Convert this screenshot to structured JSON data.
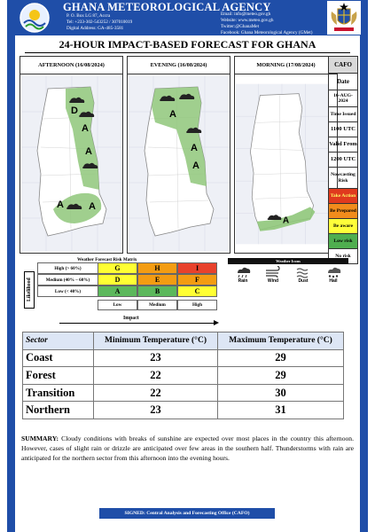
{
  "header": {
    "agency": "GHANA METEOROLOGICAL AGENCY",
    "address_lines": [
      "P. O. Box LG 87, Accra",
      "Tel: +233-302-543252 / 307010019",
      "Digital Address: GA-485-3581"
    ],
    "contact_lines": [
      "Email: info@meteo.gov.gh",
      "Website: www.meteo.gov.gh",
      "Twitter:@GhanaMet",
      "Facebook: Ghana Meteorological Agency (GMet)"
    ]
  },
  "headline": "24-HOUR IMPACT-BASED FORECAST FOR GHANA",
  "panels": [
    {
      "title": "AFTERNOON (16/08/2024)"
    },
    {
      "title": "EVENING (16/08/2024)"
    },
    {
      "title": "MORNING (17/08/2024)"
    }
  ],
  "map_labels": {
    "letter_a": "A",
    "letter_d": "D"
  },
  "cafo": {
    "title": "CAFO",
    "date_label": "Date",
    "date_value": "16-AUG-2024",
    "time_issued_label": "Time Issued",
    "time_issued_value": "1100 UTC",
    "valid_from_label": "Valid From",
    "valid_from_value": "1200 UTC",
    "nowcasting_label": "Nowcasting Risk",
    "risk_levels": [
      {
        "label": "Take Action",
        "color": "#e03a1e",
        "text_color": "#ffff66"
      },
      {
        "label": "Be Prepared",
        "color": "#f28c1c",
        "text_color": "#000000"
      },
      {
        "label": "Be aware",
        "color": "#ffff3a",
        "text_color": "#000000"
      },
      {
        "label": "Low risk",
        "color": "#4fae4f",
        "text_color": "#000000"
      },
      {
        "label": "No risk",
        "color": "#ffffff",
        "text_color": "#000000"
      }
    ]
  },
  "matrix": {
    "title": "Weather Forecast Risk Matrix",
    "likelihood_label": "Likelihood",
    "impact_label": "Impact",
    "rows": [
      {
        "label": "High (> 60%)",
        "cells": [
          "G",
          "H",
          "I"
        ]
      },
      {
        "label": "Medium (40% – 60%)",
        "cells": [
          "D",
          "E",
          "F"
        ]
      },
      {
        "label": "Low (< 40%)",
        "cells": [
          "A",
          "B",
          "C"
        ]
      }
    ],
    "columns": [
      "Low",
      "Medium",
      "High"
    ],
    "colors": {
      "green": "#5cb85c",
      "yellow": "#ffff33",
      "orange": "#f39c12",
      "red": "#e8412c"
    }
  },
  "weather_icons": {
    "title": "Weather Icons",
    "items": [
      {
        "label": "Rain",
        "icon": "rain-cloud-icon"
      },
      {
        "label": "Wind",
        "icon": "wind-icon"
      },
      {
        "label": "Dust",
        "icon": "dust-icon"
      },
      {
        "label": "Hail",
        "icon": "hail-icon"
      }
    ]
  },
  "temperatures": {
    "headers": [
      "Sector",
      "Minimum Temperature (°C)",
      "Maximum Temperature (°C)"
    ],
    "rows": [
      {
        "sector": "Coast",
        "min": "23",
        "max": "29"
      },
      {
        "sector": "Forest",
        "min": "22",
        "max": "29"
      },
      {
        "sector": "Transition",
        "min": "22",
        "max": "30"
      },
      {
        "sector": "Northern",
        "min": "23",
        "max": "31"
      }
    ]
  },
  "summary": {
    "label": "SUMMARY:",
    "text": "Cloudy conditions with breaks of sunshine are expected over most places in the country this afternoon. However, cases of slight rain or drizzle are anticipated over few areas in the southern half. Thunderstorms with rain are anticipated for the northern sector from this afternoon into the evening hours."
  },
  "footer": "SIGNED: Central Analysis and Forecasting Office (CAFO)"
}
